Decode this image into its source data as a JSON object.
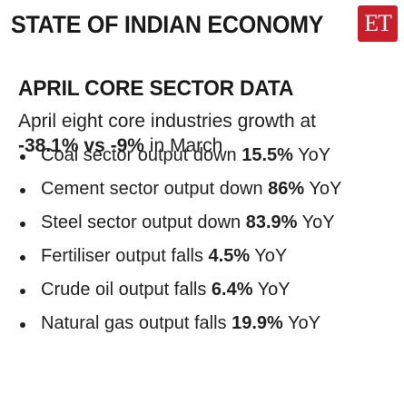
{
  "header": {
    "title": "STATE OF INDIAN ECONOMY",
    "logo_text": "ET"
  },
  "section": {
    "title": "APRIL CORE SECTOR DATA"
  },
  "summary": {
    "line1": "April eight core industries growth at",
    "april_value": "-38.1%",
    "vs": "vs",
    "march_value": "-9%",
    "suffix": "in March"
  },
  "items": [
    {
      "pre": "Coal sector output down ",
      "value": "15.5%",
      "post": " YoY"
    },
    {
      "pre": "Cement sector output down ",
      "value": "86%",
      "post": " YoY"
    },
    {
      "pre": "Steel sector output down ",
      "value": "83.9%",
      "post": " YoY"
    },
    {
      "pre": "Fertiliser output falls ",
      "value": "4.5%",
      "post": " YoY"
    },
    {
      "pre": "Crude oil output falls ",
      "value": "6.4%",
      "post": " YoY"
    },
    {
      "pre": "Natural gas output falls ",
      "value": "19.9%",
      "post": " YoY"
    }
  ],
  "colors": {
    "logo_bg": "#c8202a",
    "text": "#222222"
  }
}
